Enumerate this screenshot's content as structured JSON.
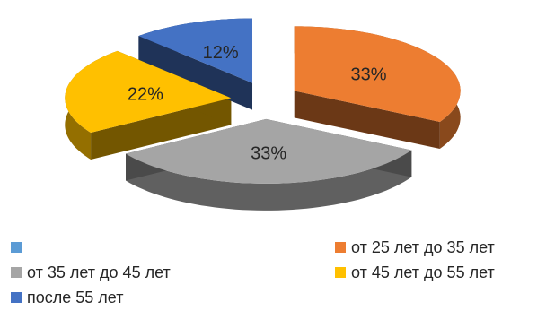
{
  "chart_data": {
    "type": "pie",
    "style": "3d-exploded",
    "categories": [
      "",
      "от 25 лет до 35 лет",
      "от 35 лет до 45 лет",
      "от 45 лет до 55 лет",
      "после 55 лет"
    ],
    "values": [
      0,
      33,
      33,
      22,
      12
    ],
    "labels": [
      "",
      "33%",
      "33%",
      "22%",
      "12%"
    ],
    "colors": [
      "#5B9BD5",
      "#ED7D31",
      "#A5A5A5",
      "#FFC000",
      "#4472C4"
    ],
    "legend_position": "bottom"
  }
}
